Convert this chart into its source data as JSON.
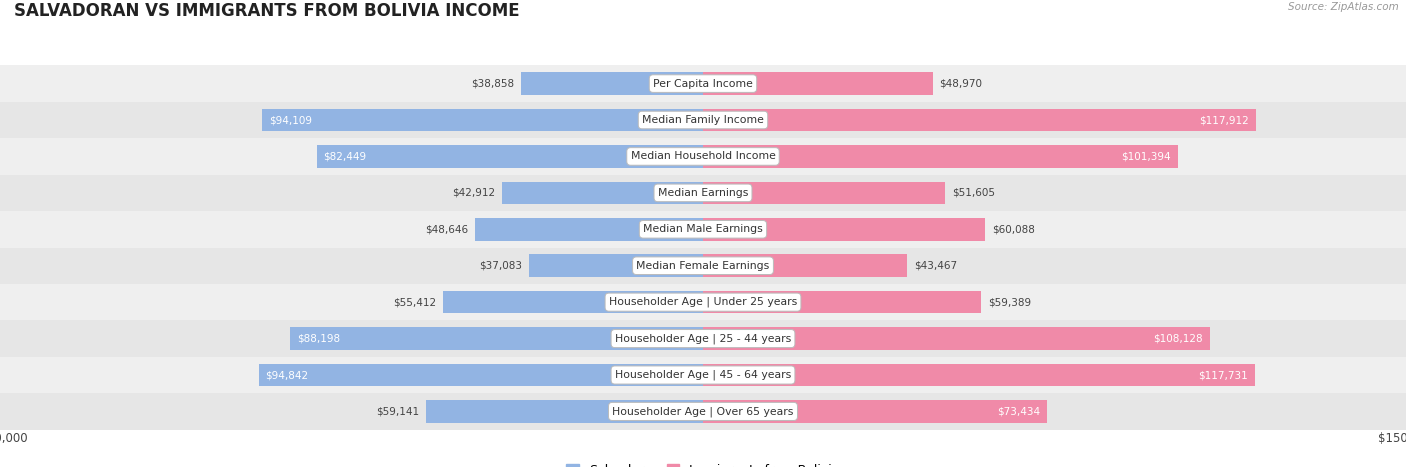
{
  "title": "SALVADORAN VS IMMIGRANTS FROM BOLIVIA INCOME",
  "source": "Source: ZipAtlas.com",
  "categories": [
    "Per Capita Income",
    "Median Family Income",
    "Median Household Income",
    "Median Earnings",
    "Median Male Earnings",
    "Median Female Earnings",
    "Householder Age | Under 25 years",
    "Householder Age | 25 - 44 years",
    "Householder Age | 45 - 64 years",
    "Householder Age | Over 65 years"
  ],
  "salvadoran_values": [
    38858,
    94109,
    82449,
    42912,
    48646,
    37083,
    55412,
    88198,
    94842,
    59141
  ],
  "bolivia_values": [
    48970,
    117912,
    101394,
    51605,
    60088,
    43467,
    59389,
    108128,
    117731,
    73434
  ],
  "salvadoran_color": "#92B4E3",
  "bolivia_color": "#F08aA8",
  "max_value": 150000,
  "bar_height": 0.62,
  "legend_blue": "#92B4E3",
  "legend_pink": "#F08aA8",
  "inside_label_threshold": 65000,
  "row_colors": [
    "#EFEFEF",
    "#E6E6E6"
  ],
  "title_fontsize": 12,
  "value_fontsize": 7.5,
  "cat_fontsize": 7.8
}
